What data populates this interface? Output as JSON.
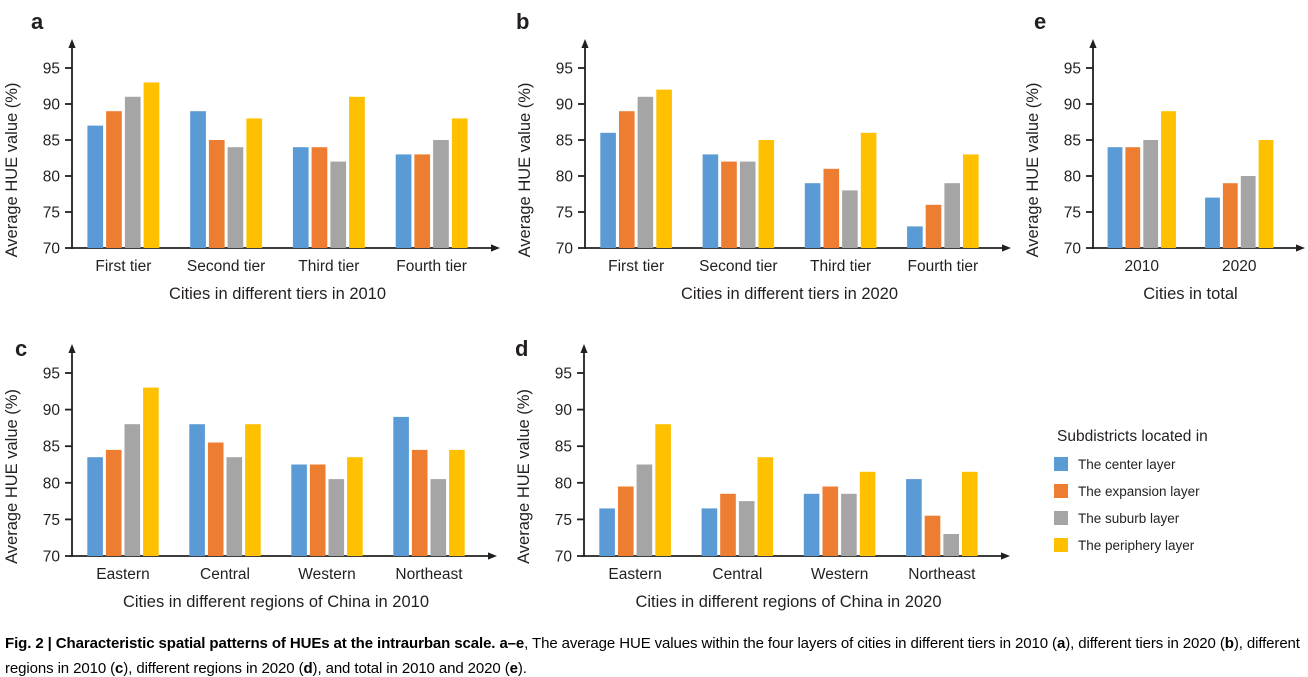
{
  "legend": {
    "title": "Subdistricts located in",
    "position": "bottom-right",
    "entries": [
      {
        "label": "The center layer",
        "color": "#5B9BD5"
      },
      {
        "label": "The expansion layer",
        "color": "#ED7D31"
      },
      {
        "label": "The suburb layer",
        "color": "#A5A5A5"
      },
      {
        "label": "The periphery layer",
        "color": "#FFC000"
      }
    ]
  },
  "chart_data": [
    {
      "panel": "a",
      "type": "bar",
      "xlabel": "Cities in different tiers in 2010",
      "ylabel": "Average HUE value (%)",
      "ylim": [
        70,
        95
      ],
      "yticks": [
        70,
        75,
        80,
        85,
        90,
        95
      ],
      "grid": false,
      "categories": [
        "First tier",
        "Second tier",
        "Third tier",
        "Fourth tier"
      ],
      "series": [
        {
          "name": "The center layer",
          "values": [
            87,
            89,
            84,
            83
          ]
        },
        {
          "name": "The expansion layer",
          "values": [
            89,
            85,
            84,
            83
          ]
        },
        {
          "name": "The suburb layer",
          "values": [
            91,
            84,
            82,
            85
          ]
        },
        {
          "name": "The periphery layer",
          "values": [
            93,
            88,
            91,
            88
          ]
        }
      ]
    },
    {
      "panel": "b",
      "type": "bar",
      "xlabel": "Cities in different tiers in 2020",
      "ylabel": "Average HUE value (%)",
      "ylim": [
        70,
        95
      ],
      "yticks": [
        70,
        75,
        80,
        85,
        90,
        95
      ],
      "grid": false,
      "categories": [
        "First tier",
        "Second tier",
        "Third tier",
        "Fourth tier"
      ],
      "series": [
        {
          "name": "The center layer",
          "values": [
            86,
            83,
            79,
            73
          ]
        },
        {
          "name": "The expansion layer",
          "values": [
            89,
            82,
            81,
            76
          ]
        },
        {
          "name": "The suburb layer",
          "values": [
            91,
            82,
            78,
            79
          ]
        },
        {
          "name": "The periphery layer",
          "values": [
            92,
            85,
            86,
            83
          ]
        }
      ]
    },
    {
      "panel": "c",
      "type": "bar",
      "xlabel": "Cities in different regions of China in 2010",
      "ylabel": "Average HUE value (%)",
      "ylim": [
        70,
        95
      ],
      "yticks": [
        70,
        75,
        80,
        85,
        90,
        95
      ],
      "grid": false,
      "categories": [
        "Eastern",
        "Central",
        "Western",
        "Northeast"
      ],
      "series": [
        {
          "name": "The center layer",
          "values": [
            83.5,
            88,
            82.5,
            89
          ]
        },
        {
          "name": "The expansion layer",
          "values": [
            84.5,
            85.5,
            82.5,
            84.5
          ]
        },
        {
          "name": "The suburb layer",
          "values": [
            88,
            83.5,
            80.5,
            80.5
          ]
        },
        {
          "name": "The periphery layer",
          "values": [
            93,
            88,
            83.5,
            84.5
          ]
        }
      ]
    },
    {
      "panel": "d",
      "type": "bar",
      "xlabel": "Cities in different regions of China in 2020",
      "ylabel": "Average HUE value (%)",
      "ylim": [
        70,
        95
      ],
      "yticks": [
        70,
        75,
        80,
        85,
        90,
        95
      ],
      "grid": false,
      "categories": [
        "Eastern",
        "Central",
        "Western",
        "Northeast"
      ],
      "series": [
        {
          "name": "The center layer",
          "values": [
            76.5,
            76.5,
            78.5,
            80.5
          ]
        },
        {
          "name": "The expansion layer",
          "values": [
            79.5,
            78.5,
            79.5,
            75.5
          ]
        },
        {
          "name": "The suburb layer",
          "values": [
            82.5,
            77.5,
            78.5,
            73
          ]
        },
        {
          "name": "The periphery layer",
          "values": [
            88,
            83.5,
            81.5,
            81.5
          ]
        }
      ]
    },
    {
      "panel": "e",
      "type": "bar",
      "xlabel": "Cities in total",
      "ylabel": "Average HUE value (%)",
      "ylim": [
        70,
        95
      ],
      "yticks": [
        70,
        75,
        80,
        85,
        90,
        95
      ],
      "grid": false,
      "categories": [
        "2010",
        "2020"
      ],
      "series": [
        {
          "name": "The center layer",
          "values": [
            84,
            77
          ]
        },
        {
          "name": "The expansion layer",
          "values": [
            84,
            79
          ]
        },
        {
          "name": "The suburb layer",
          "values": [
            85,
            80
          ]
        },
        {
          "name": "The periphery layer",
          "values": [
            89,
            85
          ]
        }
      ]
    }
  ],
  "caption": {
    "segments": [
      {
        "text": "Fig. 2 | Characteristic spatial patterns of HUEs at the intraurban scale. a–e",
        "bold": true
      },
      {
        "text": ", The average HUE values within the four layers of cities in different tiers in 2010 (",
        "bold": false
      },
      {
        "text": "a",
        "bold": true
      },
      {
        "text": "), different tiers in 2020 (",
        "bold": false
      },
      {
        "text": "b",
        "bold": true
      },
      {
        "text": "), different regions in 2010 (",
        "bold": false
      },
      {
        "text": "c",
        "bold": true
      },
      {
        "text": "), different regions in 2020 (",
        "bold": false
      },
      {
        "text": "d",
        "bold": true
      },
      {
        "text": "), and total in 2010 and 2020 (",
        "bold": false
      },
      {
        "text": "e",
        "bold": true
      },
      {
        "text": ").",
        "bold": false
      }
    ]
  }
}
